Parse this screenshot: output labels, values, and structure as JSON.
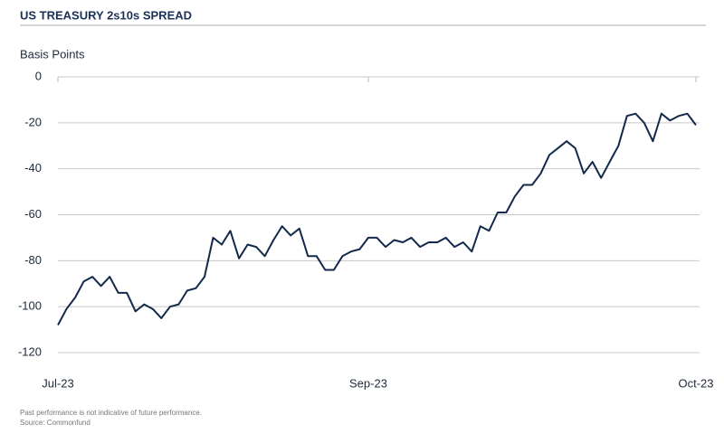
{
  "chart_data": {
    "type": "line",
    "title": "US TREASURY 2s10s SPREAD",
    "y_label": "Basis Points",
    "notes": [
      "Past performance is not indicative of future performance.",
      "Source: Commonfund"
    ],
    "color": "#13294b",
    "categories": [
      "Jul-23",
      null,
      null,
      null,
      null,
      null,
      null,
      null,
      null,
      null,
      null,
      null,
      null,
      null,
      null,
      null,
      null,
      null,
      null,
      null,
      null,
      null,
      null,
      null,
      null,
      null,
      null,
      null,
      null,
      null,
      null,
      null,
      null,
      null,
      null,
      null,
      "Sep-23",
      null,
      null,
      null,
      null,
      null,
      null,
      null,
      null,
      null,
      null,
      null,
      null,
      null,
      null,
      null,
      null,
      null,
      null,
      null,
      null,
      null,
      null,
      null,
      null,
      null,
      null,
      null,
      null,
      null,
      null,
      null,
      null,
      null,
      null,
      null,
      null,
      null,
      "Oct-23"
    ],
    "values": [
      -108,
      -101,
      -96,
      -89,
      -87,
      -91,
      -87,
      -94,
      -94,
      -102,
      -99,
      -101,
      -105,
      -100,
      -99,
      -93,
      -92,
      -87,
      -70,
      -73,
      -67,
      -79,
      -73,
      -74,
      -78,
      -71,
      -65,
      -69,
      -66,
      -78,
      -78,
      -84,
      -84,
      -78,
      -76,
      -75,
      -70,
      -70,
      -74,
      -71,
      -72,
      -70,
      -74,
      -72,
      -72,
      -70,
      -74,
      -72,
      -76,
      -65,
      -67,
      -59,
      -59,
      -52,
      -47,
      -47,
      -42,
      -34,
      -31,
      -28,
      -31,
      -42,
      -37,
      -44,
      -37,
      -30,
      -17,
      -16,
      -20,
      -28,
      -16,
      -19,
      -17,
      -16,
      -21
    ],
    "ylim": [
      -120,
      0
    ],
    "yticks": [
      0,
      -20,
      -40,
      -60,
      -80,
      -100,
      -120
    ],
    "grid": true
  }
}
